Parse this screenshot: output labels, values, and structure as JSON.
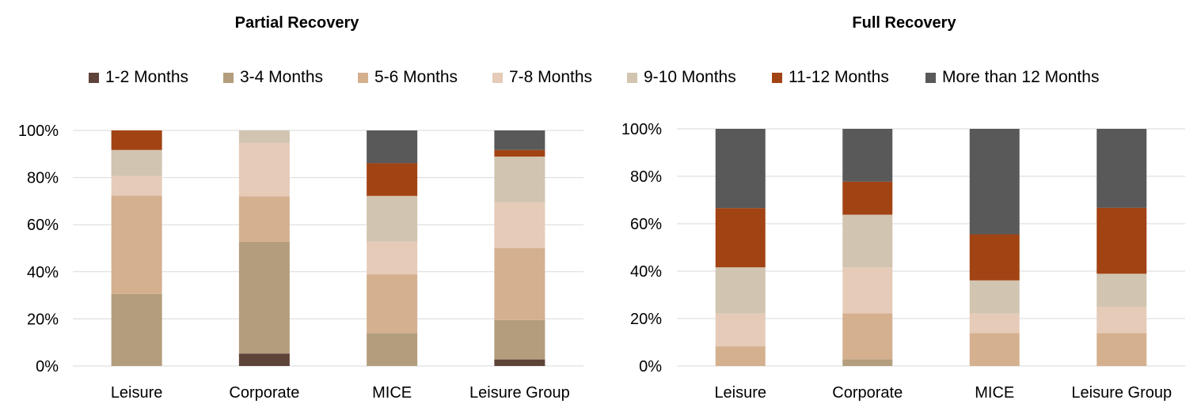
{
  "legend": [
    {
      "label": "1-2 Months",
      "color": "#5e4339"
    },
    {
      "label": "3-4 Months",
      "color": "#b39d7c"
    },
    {
      "label": "5-6 Months",
      "color": "#d4b08f"
    },
    {
      "label": "7-8 Months",
      "color": "#e5cbb8"
    },
    {
      "label": "9-10 Months",
      "color": "#d1c4b0"
    },
    {
      "label": "11-12 Months",
      "color": "#a24314"
    },
    {
      "label": "More than 12 Months",
      "color": "#595959"
    }
  ],
  "chart_data": [
    {
      "type": "bar",
      "stacked": true,
      "title": "Partial Recovery",
      "categories": [
        "Leisure",
        "Corporate",
        "MICE",
        "Leisure Group"
      ],
      "yticks": [
        "0%",
        "20%",
        "40%",
        "60%",
        "80%",
        "100%"
      ],
      "ylim": [
        0,
        100
      ],
      "grid": true,
      "legend_position": "top",
      "series": [
        {
          "name": "1-2 Months",
          "values": [
            0,
            5.3,
            0,
            2.8
          ]
        },
        {
          "name": "3-4 Months",
          "values": [
            30.6,
            47.4,
            13.9,
            16.7
          ]
        },
        {
          "name": "5-6 Months",
          "values": [
            41.7,
            19.3,
            25.0,
            30.6
          ]
        },
        {
          "name": "7-8 Months",
          "values": [
            8.3,
            22.8,
            13.9,
            19.4
          ]
        },
        {
          "name": "9-10 Months",
          "values": [
            11.1,
            5.2,
            19.4,
            19.4
          ]
        },
        {
          "name": "11-12 Months",
          "values": [
            8.3,
            0,
            13.9,
            2.8
          ]
        },
        {
          "name": "More than 12 Months",
          "values": [
            0,
            0,
            13.9,
            8.3
          ]
        }
      ]
    },
    {
      "type": "bar",
      "stacked": true,
      "title": "Full Recovery",
      "categories": [
        "Leisure",
        "Corporate",
        "MICE",
        "Leisure Group"
      ],
      "yticks": [
        "0%",
        "20%",
        "40%",
        "60%",
        "80%",
        "100%"
      ],
      "ylim": [
        0,
        100
      ],
      "grid": true,
      "legend_position": "top",
      "series": [
        {
          "name": "1-2 Months",
          "values": [
            0,
            0,
            0,
            0
          ]
        },
        {
          "name": "3-4 Months",
          "values": [
            0,
            2.8,
            0,
            0
          ]
        },
        {
          "name": "5-6 Months",
          "values": [
            8.3,
            19.4,
            13.9,
            13.9
          ]
        },
        {
          "name": "7-8 Months",
          "values": [
            13.9,
            19.4,
            8.3,
            11.1
          ]
        },
        {
          "name": "9-10 Months",
          "values": [
            19.4,
            22.2,
            13.9,
            13.9
          ]
        },
        {
          "name": "11-12 Months",
          "values": [
            25.0,
            13.9,
            19.4,
            27.8
          ]
        },
        {
          "name": "More than 12 Months",
          "values": [
            33.4,
            22.3,
            44.5,
            33.3
          ]
        }
      ]
    }
  ]
}
